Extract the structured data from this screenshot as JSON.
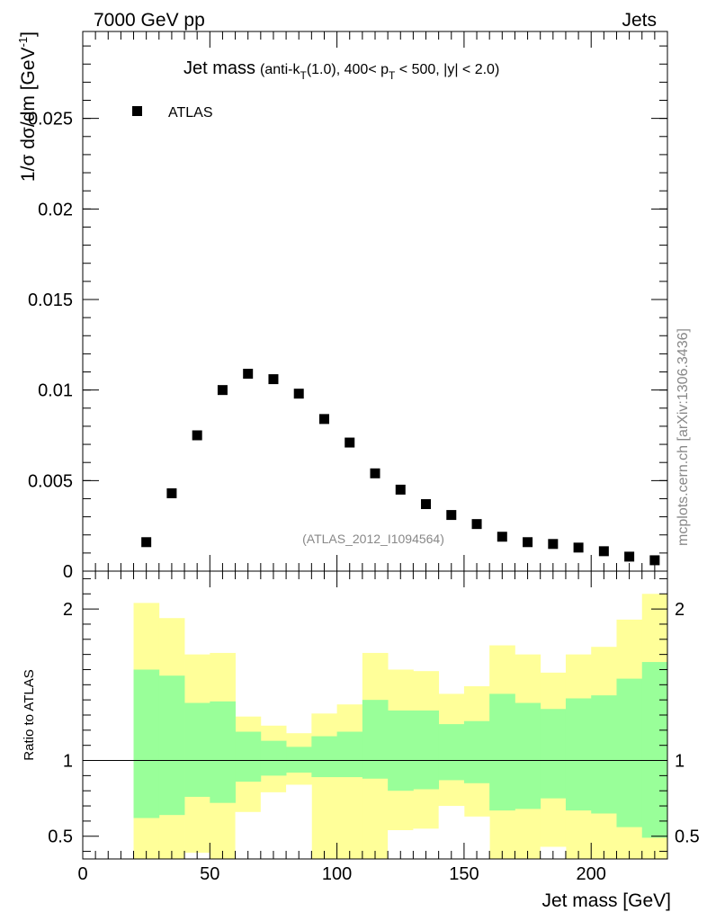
{
  "header": {
    "left": "7000 GeV pp",
    "right": "Jets"
  },
  "side_label": "mcplots.cern.ch [arXiv:1306.3436]",
  "chart_data": [
    {
      "type": "scatter",
      "title_main": "Jet mass",
      "title_sub": {
        "a": "(anti-k",
        "sub1": "T",
        "b": "(1.0), 400< p",
        "sub2": "T",
        "c": " < 500, |y| < 2.0)"
      },
      "ylabel": {
        "main": "1/σ dσ/dm [GeV",
        "sup": "-1",
        "close": "]"
      },
      "watermark": "(ATLAS_2012_I1094564)",
      "legend": [
        {
          "label": "ATLAS",
          "marker": "square",
          "position": "top-left"
        }
      ],
      "xlim": [
        0,
        230
      ],
      "ylim": [
        0,
        0.0298
      ],
      "y_ticks": [
        {
          "value": 0,
          "label": "0"
        },
        {
          "value": 0.005,
          "label": "0.005"
        },
        {
          "value": 0.01,
          "label": "0.01"
        },
        {
          "value": 0.015,
          "label": "0.015"
        },
        {
          "value": 0.02,
          "label": "0.02"
        },
        {
          "value": 0.025,
          "label": "0.025"
        }
      ],
      "series": [
        {
          "name": "ATLAS",
          "x": [
            25,
            35,
            45,
            55,
            65,
            75,
            85,
            95,
            105,
            115,
            125,
            135,
            145,
            155,
            165,
            175,
            185,
            195,
            205,
            215,
            225
          ],
          "y": [
            0.0016,
            0.0043,
            0.0075,
            0.01,
            0.0109,
            0.0106,
            0.0098,
            0.0084,
            0.0071,
            0.0054,
            0.0045,
            0.0037,
            0.0031,
            0.0026,
            0.0019,
            0.0016,
            0.0015,
            0.0013,
            0.0011,
            0.0008,
            0.0006
          ]
        }
      ]
    },
    {
      "type": "area",
      "ylabel": "Ratio to ATLAS",
      "xlabel": "Jet mass [GeV]",
      "xlim": [
        0,
        230
      ],
      "ylim": [
        0.35,
        2.25
      ],
      "reference_line": 1,
      "x_ticks": [
        {
          "value": 0,
          "label": "0"
        },
        {
          "value": 50,
          "label": "50"
        },
        {
          "value": 100,
          "label": "100"
        },
        {
          "value": 150,
          "label": "150"
        },
        {
          "value": 200,
          "label": "200"
        }
      ],
      "y_ticks": [
        {
          "value": 0.5,
          "label": "0.5"
        },
        {
          "value": 1,
          "label": "1"
        },
        {
          "value": 2,
          "label": "2"
        }
      ],
      "bin_edges": [
        20,
        30,
        40,
        50,
        60,
        70,
        80,
        90,
        100,
        110,
        120,
        130,
        140,
        150,
        160,
        170,
        180,
        190,
        200,
        210,
        220,
        230
      ],
      "bands": [
        {
          "name": "outer",
          "color": "#ffff99",
          "lo": [
            0.35,
            0.35,
            0.39,
            0.35,
            0.35,
            0.35,
            0.35,
            0.35,
            0.35,
            0.35,
            0.35,
            0.35,
            0.35,
            0.35,
            0.35,
            0.35,
            0.43,
            0.35,
            0.35,
            0.35,
            0.35
          ],
          "hi": [
            2.04,
            1.94,
            1.7,
            1.71,
            1.29,
            1.23,
            1.18,
            1.31,
            1.37,
            1.71,
            1.6,
            1.59,
            1.44,
            1.49,
            1.76,
            1.7,
            1.58,
            1.7,
            1.75,
            1.93,
            2.1
          ]
        },
        {
          "name": "white_gap",
          "color": "#ffffff",
          "lo": [
            0.35,
            0.35,
            0.35,
            0.35,
            0.35,
            0.35,
            0.35,
            0.35,
            0.35,
            0.35,
            0.35,
            0.35,
            0.35,
            0.35,
            0.35,
            0.35,
            0.35,
            0.35,
            0.35,
            0.35,
            0.35
          ],
          "hi": [
            0.35,
            0.35,
            0.39,
            0.35,
            0.66,
            0.79,
            0.84,
            0.35,
            0.35,
            0.35,
            0.54,
            0.55,
            0.7,
            0.63,
            0.35,
            0.35,
            0.43,
            0.35,
            0.35,
            0.35,
            0.35
          ]
        },
        {
          "name": "inner",
          "color": "#99ff99",
          "lo": [
            0.62,
            0.64,
            0.76,
            0.72,
            0.86,
            0.9,
            0.92,
            0.89,
            0.89,
            0.88,
            0.8,
            0.81,
            0.87,
            0.85,
            0.67,
            0.68,
            0.75,
            0.67,
            0.65,
            0.56,
            0.49
          ],
          "hi": [
            1.6,
            1.56,
            1.38,
            1.39,
            1.19,
            1.13,
            1.09,
            1.16,
            1.19,
            1.4,
            1.33,
            1.33,
            1.24,
            1.26,
            1.44,
            1.38,
            1.34,
            1.41,
            1.43,
            1.54,
            1.65
          ]
        }
      ]
    }
  ]
}
